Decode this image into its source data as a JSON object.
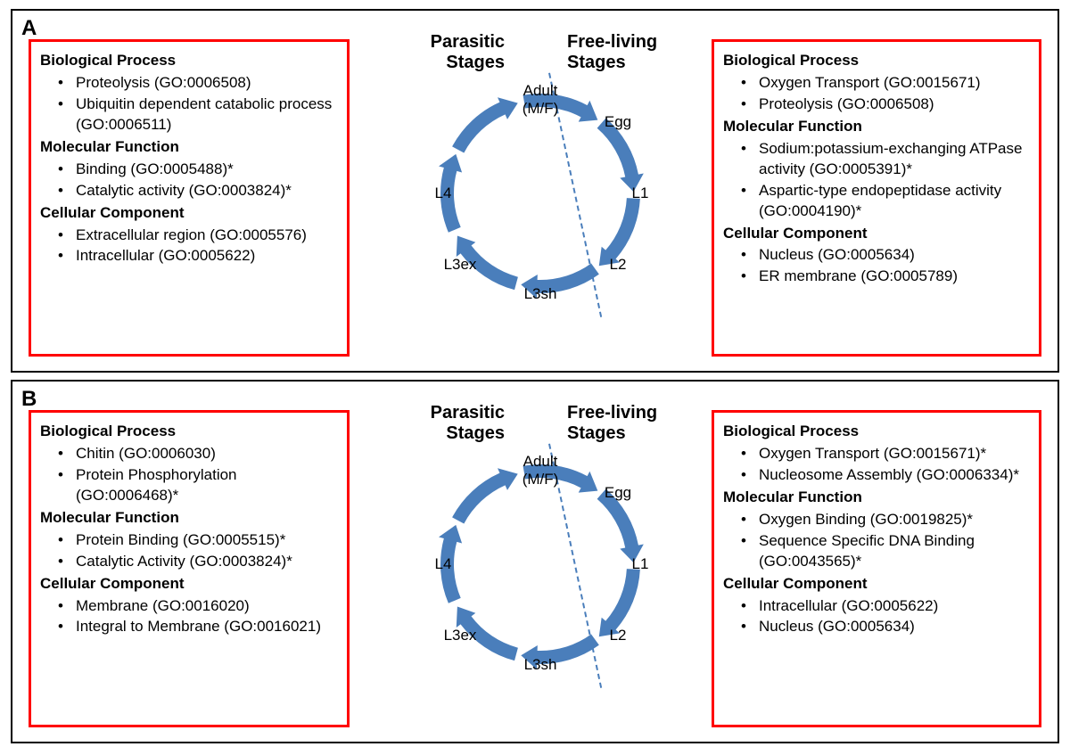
{
  "colors": {
    "border_black": "#000000",
    "box_red": "#ff0000",
    "arrow_blue": "#4a7ebb",
    "dash_blue": "#4a7ebb",
    "background": "#ffffff",
    "text": "#000000"
  },
  "cycle": {
    "labels": {
      "adult": "Adult\n(M/F)",
      "egg": "Egg",
      "l1": "L1",
      "l2": "L2",
      "l3sh": "L3sh",
      "l3ex": "L3ex",
      "l4": "L4"
    },
    "titles": {
      "parasitic": "Parasitic\nStages",
      "free": "Free-living\nStages"
    }
  },
  "panels": {
    "A": {
      "letter": "A",
      "left": {
        "bp_title": "Biological Process",
        "bp_1": "Proteolysis (GO:0006508)",
        "bp_2": "Ubiquitin dependent catabolic process (GO:0006511)",
        "mf_title": "Molecular Function",
        "mf_1": "Binding (GO:0005488)*",
        "mf_2": "Catalytic activity (GO:0003824)*",
        "cc_title": "Cellular Component",
        "cc_1": "Extracellular region (GO:0005576)",
        "cc_2": "Intracellular (GO:0005622)"
      },
      "right": {
        "bp_title": "Biological Process",
        "bp_1": "Oxygen Transport (GO:0015671)",
        "bp_2": "Proteolysis (GO:0006508)",
        "mf_title": "Molecular Function",
        "mf_1": "Sodium:potassium-exchanging ATPase activity (GO:0005391)*",
        "mf_2": "Aspartic-type endopeptidase activity (GO:0004190)*",
        "cc_title": "Cellular Component",
        "cc_1": "Nucleus (GO:0005634)",
        "cc_2": "ER membrane (GO:0005789)"
      }
    },
    "B": {
      "letter": "B",
      "left": {
        "bp_title": "Biological Process",
        "bp_1": "Chitin (GO:0006030)",
        "bp_2": "Protein Phosphorylation (GO:0006468)*",
        "mf_title": "Molecular Function",
        "mf_1": "Protein Binding (GO:0005515)*",
        "mf_2": "Catalytic Activity (GO:0003824)*",
        "cc_title": "Cellular Component",
        "cc_1": "Membrane (GO:0016020)",
        "cc_2": "Integral to Membrane (GO:0016021)"
      },
      "right": {
        "bp_title": "Biological Process",
        "bp_1": "Oxygen Transport (GO:0015671)*",
        "bp_2": "Nucleosome Assembly (GO:0006334)*",
        "mf_title": "Molecular Function",
        "mf_1": "Oxygen Binding (GO:0019825)*",
        "mf_2": "Sequence Specific DNA Binding (GO:0043565)*",
        "cc_title": "Cellular Component",
        "cc_1": "Intracellular (GO:0005622)",
        "cc_2": "Nucleus (GO:0005634)"
      }
    }
  }
}
